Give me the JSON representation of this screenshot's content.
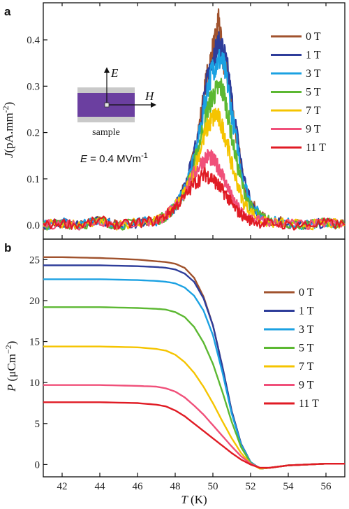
{
  "chart_data": [
    {
      "panel": "a",
      "type": "line",
      "xlabel": "",
      "ylabel": {
        "symbol": "J",
        "unit": "(pA.mm",
        "exp": "-2",
        "close": ")"
      },
      "xlim": [
        41,
        57
      ],
      "ylim": [
        -0.03,
        0.48
      ],
      "yticks": [
        "0.0",
        "0.1",
        "0.2",
        "0.3",
        "0.4"
      ],
      "yticks_values": [
        0,
        0.1,
        0.2,
        0.3,
        0.4
      ],
      "legend": {
        "placement": "top-right"
      },
      "annotation": {
        "prefix": "E",
        "text": " = 0.4 MVm",
        "exp": "-1"
      },
      "inset": {
        "label": "sample",
        "e_label": "E",
        "h_label": "H"
      },
      "series": [
        {
          "name": "0 T",
          "color": "#a0522d",
          "peak": 0.45,
          "x": [
            41,
            42,
            43,
            44,
            45,
            46,
            47,
            47.5,
            48,
            48.5,
            49,
            49.3,
            49.6,
            49.8,
            50,
            50.2,
            50.3,
            50.5,
            50.8,
            51,
            51.3,
            51.6,
            52,
            52.5,
            53,
            54,
            55,
            56,
            57
          ],
          "y": [
            0,
            0.005,
            0,
            0.01,
            0,
            0.005,
            0.01,
            0.02,
            0.04,
            0.08,
            0.15,
            0.22,
            0.3,
            0.34,
            0.38,
            0.4,
            0.45,
            0.36,
            0.32,
            0.26,
            0.18,
            0.1,
            0.05,
            0.02,
            0.01,
            0.005,
            0,
            0.005,
            0
          ]
        },
        {
          "name": "1 T",
          "color": "#2e3d9a",
          "peak": 0.39,
          "x": [
            41,
            42,
            43,
            44,
            45,
            46,
            47,
            47.5,
            48,
            48.5,
            49,
            49.3,
            49.6,
            49.8,
            50,
            50.2,
            50.4,
            50.6,
            50.8,
            51,
            51.3,
            51.6,
            52,
            52.5,
            53,
            54,
            55,
            56,
            57
          ],
          "y": [
            0,
            0.005,
            0,
            0.01,
            0,
            0.005,
            0.01,
            0.02,
            0.04,
            0.08,
            0.15,
            0.22,
            0.29,
            0.33,
            0.37,
            0.38,
            0.39,
            0.37,
            0.33,
            0.27,
            0.19,
            0.11,
            0.05,
            0.02,
            0.01,
            0.005,
            0,
            0.005,
            0
          ]
        },
        {
          "name": "3 T",
          "color": "#1ba1e2",
          "peak": 0.36,
          "x": [
            41,
            42,
            43,
            44,
            45,
            46,
            47,
            47.5,
            48,
            48.5,
            49,
            49.3,
            49.6,
            49.8,
            50,
            50.2,
            50.4,
            50.6,
            50.8,
            51,
            51.3,
            51.6,
            52,
            52.5,
            53,
            54,
            55,
            56,
            57
          ],
          "y": [
            0,
            0.005,
            0,
            0.01,
            0,
            0.005,
            0.01,
            0.02,
            0.04,
            0.08,
            0.14,
            0.2,
            0.27,
            0.31,
            0.34,
            0.35,
            0.36,
            0.34,
            0.3,
            0.24,
            0.17,
            0.1,
            0.05,
            0.02,
            0.01,
            0.005,
            0,
            0.005,
            0
          ]
        },
        {
          "name": "5 T",
          "color": "#5cb832",
          "peak": 0.3,
          "x": [
            41,
            42,
            43,
            44,
            45,
            46,
            47,
            47.5,
            48,
            48.5,
            49,
            49.3,
            49.6,
            49.8,
            50,
            50.2,
            50.4,
            50.6,
            50.8,
            51,
            51.3,
            51.6,
            52,
            52.5,
            53,
            54,
            55,
            56,
            57
          ],
          "y": [
            0,
            0.005,
            0,
            0.01,
            0,
            0.005,
            0.01,
            0.02,
            0.04,
            0.07,
            0.13,
            0.18,
            0.23,
            0.26,
            0.28,
            0.29,
            0.3,
            0.28,
            0.24,
            0.19,
            0.13,
            0.08,
            0.04,
            0.02,
            0.01,
            0.005,
            0,
            0.005,
            0
          ]
        },
        {
          "name": "7 T",
          "color": "#f5c400",
          "peak": 0.24,
          "x": [
            41,
            42,
            43,
            44,
            45,
            46,
            47,
            47.5,
            48,
            48.5,
            49,
            49.3,
            49.6,
            49.8,
            50,
            50.2,
            50.4,
            50.6,
            50.8,
            51,
            51.3,
            51.6,
            52,
            52.5,
            53,
            54,
            55,
            56,
            57
          ],
          "y": [
            0,
            0.005,
            0,
            0.01,
            0,
            0.005,
            0.01,
            0.02,
            0.04,
            0.07,
            0.12,
            0.16,
            0.2,
            0.22,
            0.23,
            0.24,
            0.22,
            0.2,
            0.17,
            0.13,
            0.09,
            0.05,
            0.03,
            0.01,
            0.005,
            0.005,
            0,
            0.005,
            0
          ]
        },
        {
          "name": "9 T",
          "color": "#f0507a",
          "peak": 0.15,
          "x": [
            41,
            42,
            43,
            44,
            45,
            46,
            47,
            47.5,
            48,
            48.5,
            49,
            49.3,
            49.6,
            49.8,
            50,
            50.2,
            50.4,
            50.6,
            50.8,
            51,
            51.3,
            51.6,
            52,
            52.5,
            53,
            54,
            55,
            56,
            57
          ],
          "y": [
            0,
            0.005,
            0,
            0.01,
            0,
            0.005,
            0.01,
            0.02,
            0.04,
            0.07,
            0.11,
            0.13,
            0.145,
            0.15,
            0.14,
            0.13,
            0.12,
            0.1,
            0.08,
            0.06,
            0.04,
            0.025,
            0.015,
            0.01,
            0.005,
            0.005,
            0,
            0.005,
            0
          ]
        },
        {
          "name": "11 T",
          "color": "#e01b24",
          "peak": 0.11,
          "x": [
            41,
            42,
            43,
            44,
            45,
            46,
            47,
            47.5,
            48,
            48.5,
            49,
            49.3,
            49.6,
            49.8,
            50,
            50.2,
            50.4,
            50.6,
            50.8,
            51,
            51.3,
            51.6,
            52,
            52.5,
            53,
            54,
            55,
            56,
            57
          ],
          "y": [
            0,
            0.005,
            0,
            0.01,
            0,
            0.005,
            0.01,
            0.02,
            0.04,
            0.06,
            0.09,
            0.1,
            0.11,
            0.105,
            0.1,
            0.09,
            0.08,
            0.07,
            0.06,
            0.045,
            0.03,
            0.02,
            0.01,
            0.005,
            0.005,
            0,
            0,
            0.005,
            0
          ]
        }
      ]
    },
    {
      "panel": "b",
      "type": "line",
      "xlabel": {
        "symbol": "T",
        "unit": " (K)"
      },
      "ylabel": {
        "symbol": "P",
        "unit": " (μCm",
        "exp": "−2",
        "close": ")"
      },
      "xlim": [
        41,
        57
      ],
      "ylim": [
        -1.5,
        27.5
      ],
      "xticks": [
        42,
        44,
        46,
        48,
        50,
        52,
        54,
        56
      ],
      "yticks": [
        0,
        5,
        10,
        15,
        20,
        25
      ],
      "legend": {
        "placement": "center-right"
      },
      "series": [
        {
          "name": "0 T",
          "color": "#a0522d",
          "x": [
            41,
            42,
            44,
            46,
            47,
            47.5,
            48,
            48.5,
            49,
            49.5,
            50,
            50.5,
            51,
            51.5,
            52,
            52.5,
            53,
            54,
            55,
            56,
            57
          ],
          "y": [
            25.3,
            25.3,
            25.2,
            25,
            24.8,
            24.7,
            24.5,
            24,
            22.8,
            20.5,
            17,
            12,
            6.5,
            2.5,
            0.3,
            -0.5,
            -0.4,
            -0.1,
            0,
            0.1,
            0.1
          ]
        },
        {
          "name": "1 T",
          "color": "#2e3d9a",
          "x": [
            41,
            42,
            44,
            46,
            47,
            47.5,
            48,
            48.5,
            49,
            49.5,
            50,
            50.5,
            51,
            51.5,
            52,
            52.5,
            53,
            54,
            55,
            56,
            57
          ],
          "y": [
            24.3,
            24.3,
            24.3,
            24.2,
            24.1,
            24,
            23.8,
            23.3,
            22.3,
            20.3,
            17,
            12,
            6.5,
            2.5,
            0.3,
            -0.5,
            -0.4,
            -0.1,
            0,
            0.1,
            0.1
          ]
        },
        {
          "name": "3 T",
          "color": "#1ba1e2",
          "x": [
            41,
            42,
            44,
            46,
            47,
            47.5,
            48,
            48.5,
            49,
            49.5,
            50,
            50.5,
            51,
            51.5,
            52,
            52.5,
            53,
            54,
            55,
            56,
            57
          ],
          "y": [
            22.6,
            22.6,
            22.6,
            22.5,
            22.4,
            22.3,
            22.1,
            21.6,
            20.6,
            18.8,
            15.8,
            11.3,
            6.2,
            2.4,
            0.3,
            -0.5,
            -0.4,
            -0.1,
            0,
            0.1,
            0.1
          ]
        },
        {
          "name": "5 T",
          "color": "#5cb832",
          "x": [
            41,
            42,
            44,
            46,
            47,
            47.5,
            48,
            48.5,
            49,
            49.5,
            50,
            50.5,
            51,
            51.5,
            52,
            52.5,
            53,
            54,
            55,
            56,
            57
          ],
          "y": [
            19.2,
            19.2,
            19.2,
            19.1,
            19,
            18.9,
            18.6,
            18,
            16.8,
            14.9,
            12.3,
            8.9,
            5.2,
            2.1,
            0.2,
            -0.5,
            -0.4,
            -0.1,
            0,
            0.1,
            0.1
          ]
        },
        {
          "name": "7 T",
          "color": "#f5c400",
          "x": [
            41,
            42,
            44,
            46,
            47,
            47.5,
            48,
            48.5,
            49,
            49.5,
            50,
            50.5,
            51,
            51.5,
            52,
            52.5,
            53,
            54,
            55,
            56,
            57
          ],
          "y": [
            14.4,
            14.4,
            14.4,
            14.3,
            14.1,
            13.9,
            13.4,
            12.5,
            11.2,
            9.5,
            7.5,
            5.3,
            3.2,
            1.4,
            0.1,
            -0.5,
            -0.4,
            -0.1,
            0,
            0.1,
            0.1
          ]
        },
        {
          "name": "9 T",
          "color": "#f0507a",
          "x": [
            41,
            42,
            44,
            46,
            47,
            47.5,
            48,
            48.5,
            49,
            49.5,
            50,
            50.5,
            51,
            51.5,
            52,
            52.5,
            53,
            54,
            55,
            56,
            57
          ],
          "y": [
            9.7,
            9.7,
            9.7,
            9.6,
            9.5,
            9.3,
            8.9,
            8.2,
            7.2,
            6.1,
            4.8,
            3.5,
            2.2,
            1,
            0.1,
            -0.4,
            -0.4,
            -0.1,
            0,
            0.1,
            0.1
          ]
        },
        {
          "name": "11 T",
          "color": "#e01b24",
          "x": [
            41,
            42,
            44,
            46,
            47,
            47.5,
            48,
            48.5,
            49,
            49.5,
            50,
            50.5,
            51,
            51.5,
            52,
            52.5,
            53,
            54,
            55,
            56,
            57
          ],
          "y": [
            7.6,
            7.6,
            7.6,
            7.5,
            7.3,
            7.1,
            6.6,
            5.9,
            5,
            4.1,
            3.2,
            2.3,
            1.4,
            0.6,
            0,
            -0.4,
            -0.4,
            -0.1,
            0,
            0.1,
            0.1
          ]
        }
      ]
    }
  ]
}
